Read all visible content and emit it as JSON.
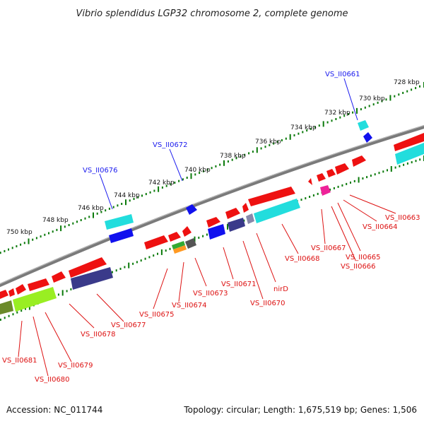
{
  "title": "Vibrio splendidus LGP32 chromosome 2, complete genome",
  "footer": {
    "accession": "Accession: NC_011744",
    "topology": "Topology: circular; Length: 1,675,519 bp; Genes: 1,506"
  },
  "colors": {
    "backbone": "#7a7a7a",
    "ticks": "#0a7a0a",
    "label_forward": "#1a1aee",
    "label_reverse": "#dd1111"
  },
  "scale_labels": [
    "728 kbp",
    "730 kbp",
    "732 kbp",
    "734 kbp",
    "736 kbp",
    "738 kbp",
    "740 kbp",
    "742 kbp",
    "744 kbp",
    "746 kbp",
    "748 kbp",
    "750 kbp"
  ],
  "labels_forward": [
    "VS_II0661",
    "VS_II0672",
    "VS_II0676"
  ],
  "labels_reverse": [
    "VS_II0663",
    "VS_II0664",
    "VS_II0665",
    "VS_II0666",
    "VS_II0667",
    "VS_II0668",
    "nirD",
    "VS_II0670",
    "VS_II0671",
    "VS_II0673",
    "VS_II0674",
    "VS_II0675",
    "VS_II0677",
    "VS_II0678",
    "VS_II0679",
    "VS_II0680",
    "VS_II0681"
  ]
}
